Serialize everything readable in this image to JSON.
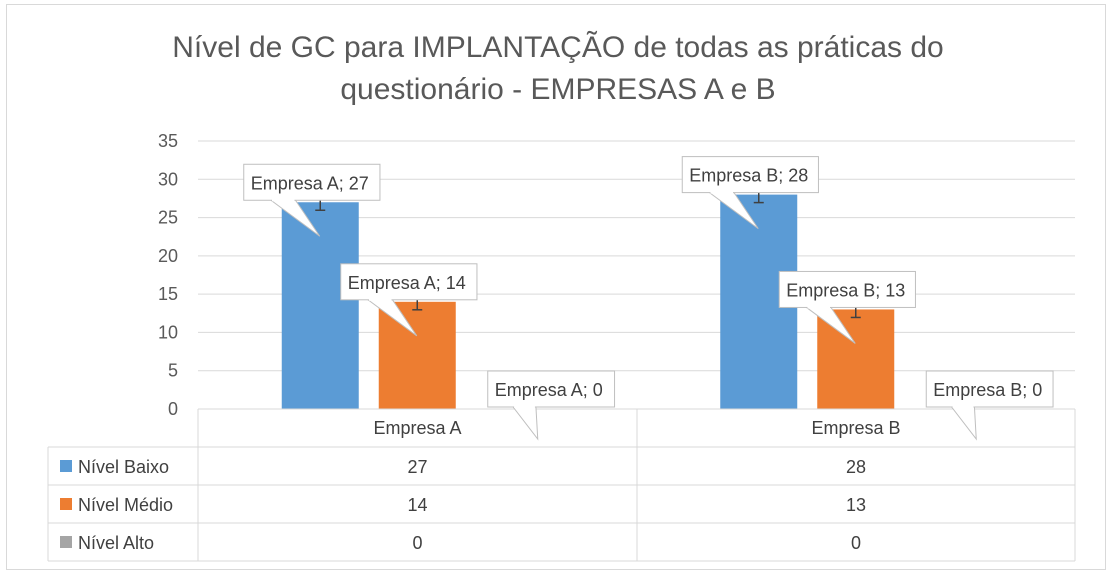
{
  "chart_data": {
    "type": "bar",
    "title": "Nível de GC para IMPLANTAÇÃO de todas as práticas do questionário - EMPRESAS A e B",
    "title_lines": [
      "Nível de GC para IMPLANTAÇÃO de todas as práticas do",
      "questionário - EMPRESAS A e B"
    ],
    "categories": [
      "Empresa A",
      "Empresa B"
    ],
    "series": [
      {
        "name": "Nível Baixo",
        "values": [
          27,
          28
        ],
        "color": "#5b9bd5"
      },
      {
        "name": "Nível Médio",
        "values": [
          14,
          13
        ],
        "color": "#ed7d31"
      },
      {
        "name": "Nível Alto",
        "values": [
          0,
          0
        ],
        "color": "#a5a5a5"
      }
    ],
    "ylim": [
      0,
      35
    ],
    "yticks": [
      0,
      5,
      10,
      15,
      20,
      25,
      30,
      35
    ],
    "grid": true,
    "error_bars": true,
    "data_table": true,
    "data_labels": [
      [
        "Empresa A; 27",
        "Empresa A; 14",
        "Empresa A; 0"
      ],
      [
        "Empresa B; 28",
        "Empresa B; 13",
        "Empresa B; 0"
      ]
    ]
  }
}
